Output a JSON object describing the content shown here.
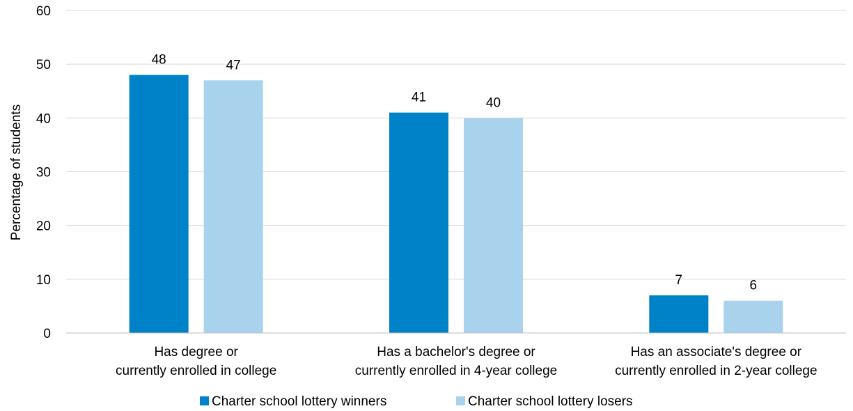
{
  "chart_data": {
    "type": "bar",
    "title": "",
    "xlabel": "",
    "ylabel": "Percentage of students",
    "ylim": [
      0,
      60
    ],
    "yticks": [
      0,
      10,
      20,
      30,
      40,
      50,
      60
    ],
    "grid": true,
    "legend_position": "bottom",
    "categories": [
      [
        "Has degree or",
        "currently enrolled in college"
      ],
      [
        "Has a bachelor's degree or",
        "currently enrolled in 4-year college"
      ],
      [
        "Has an associate's degree or",
        "currently enrolled in 2-year college"
      ]
    ],
    "series": [
      {
        "name": "Charter school lottery winners",
        "color": "#0082c8",
        "values": [
          48,
          41,
          7
        ]
      },
      {
        "name": "Charter school lottery losers",
        "color": "#a9d3ec",
        "values": [
          47,
          40,
          6
        ]
      }
    ]
  }
}
